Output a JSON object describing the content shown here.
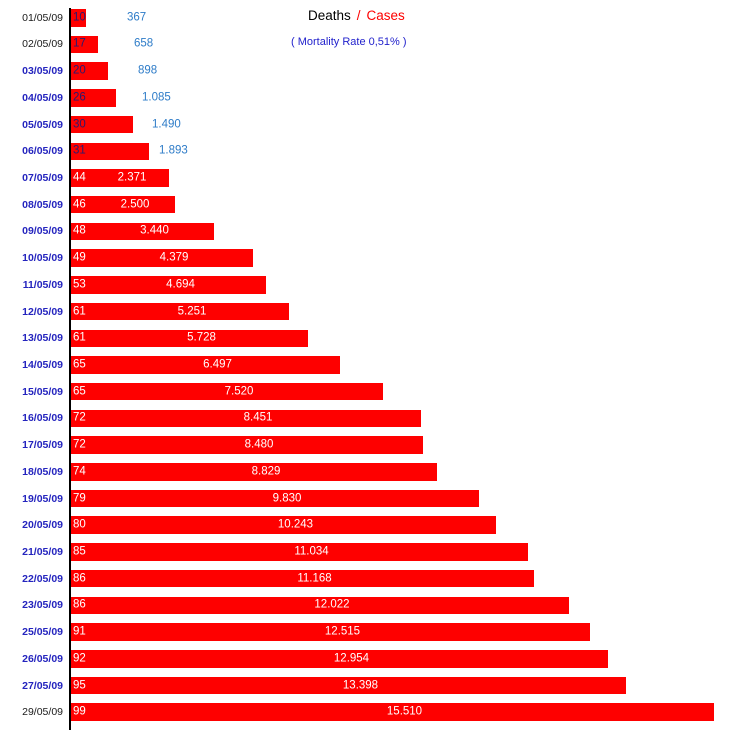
{
  "legend": {
    "deaths_label": "Deaths",
    "separator": "/",
    "cases_label": "Cases",
    "mortality_note": "( Mortality Rate 0,51% )"
  },
  "colors": {
    "bar": "#FE0000",
    "axis": "#000000",
    "date_accent": "#2424BE",
    "date_plain": "#1A1A1A",
    "deaths_text_dark": "#2A1A6E",
    "bar_text_white": "#FFFFFF",
    "cases_outside_blue": "#2E7CC8",
    "legend_cases_red": "#FE0000",
    "mortality_blue": "#2222CC"
  },
  "chart_data": {
    "type": "bar",
    "orientation": "horizontal",
    "title": "Deaths / Cases",
    "subtitle": "( Mortality Rate 0,51% )",
    "grid": false,
    "legend_position": "top-right",
    "xlim": [
      0,
      15510
    ],
    "categories": [
      "01/05/09",
      "02/05/09",
      "03/05/09",
      "04/05/09",
      "05/05/09",
      "06/05/09",
      "07/05/09",
      "08/05/09",
      "09/05/09",
      "10/05/09",
      "11/05/09",
      "12/05/09",
      "13/05/09",
      "14/05/09",
      "15/05/09",
      "16/05/09",
      "17/05/09",
      "18/05/09",
      "19/05/09",
      "20/05/09",
      "21/05/09",
      "22/05/09",
      "23/05/09",
      "25/05/09",
      "26/05/09",
      "27/05/09",
      "29/05/09"
    ],
    "series": [
      {
        "name": "Deaths",
        "values": [
          10,
          17,
          20,
          26,
          30,
          31,
          44,
          46,
          48,
          49,
          53,
          61,
          61,
          65,
          65,
          72,
          72,
          74,
          79,
          80,
          85,
          86,
          86,
          91,
          92,
          95,
          99
        ]
      },
      {
        "name": "Cases",
        "values": [
          367,
          658,
          898,
          1085,
          1490,
          1893,
          2371,
          2500,
          3440,
          4379,
          4694,
          5251,
          5728,
          6497,
          7520,
          8451,
          8480,
          8829,
          9830,
          10243,
          11034,
          11168,
          12022,
          12515,
          12954,
          13398,
          15510
        ]
      }
    ]
  },
  "rows": [
    {
      "date": "01/05/09",
      "deaths": "10",
      "cases": 367,
      "cases_display": "367",
      "date_variant": "plain",
      "value_placement": "outside"
    },
    {
      "date": "02/05/09",
      "deaths": "17",
      "cases": 658,
      "cases_display": "658",
      "date_variant": "plain",
      "value_placement": "outside"
    },
    {
      "date": "03/05/09",
      "deaths": "20",
      "cases": 898,
      "cases_display": "898",
      "date_variant": "accent",
      "value_placement": "outside"
    },
    {
      "date": "04/05/09",
      "deaths": "26",
      "cases": 1085,
      "cases_display": "1.085",
      "date_variant": "accent",
      "value_placement": "outside"
    },
    {
      "date": "05/05/09",
      "deaths": "30",
      "cases": 1490,
      "cases_display": "1.490",
      "date_variant": "accent",
      "value_placement": "outside"
    },
    {
      "date": "06/05/09",
      "deaths": "31",
      "cases": 1893,
      "cases_display": "1.893",
      "date_variant": "accent",
      "value_placement": "outside"
    },
    {
      "date": "07/05/09",
      "deaths": "44",
      "cases": 2371,
      "cases_display": "2.371",
      "date_variant": "accent",
      "value_placement": "inside"
    },
    {
      "date": "08/05/09",
      "deaths": "46",
      "cases": 2500,
      "cases_display": "2.500",
      "date_variant": "accent",
      "value_placement": "inside"
    },
    {
      "date": "09/05/09",
      "deaths": "48",
      "cases": 3440,
      "cases_display": "3.440",
      "date_variant": "accent",
      "value_placement": "inside"
    },
    {
      "date": "10/05/09",
      "deaths": "49",
      "cases": 4379,
      "cases_display": "4.379",
      "date_variant": "accent",
      "value_placement": "inside"
    },
    {
      "date": "11/05/09",
      "deaths": "53",
      "cases": 4694,
      "cases_display": "4.694",
      "date_variant": "accent",
      "value_placement": "inside"
    },
    {
      "date": "12/05/09",
      "deaths": "61",
      "cases": 5251,
      "cases_display": "5.251",
      "date_variant": "accent",
      "value_placement": "inside"
    },
    {
      "date": "13/05/09",
      "deaths": "61",
      "cases": 5728,
      "cases_display": "5.728",
      "date_variant": "accent",
      "value_placement": "inside"
    },
    {
      "date": "14/05/09",
      "deaths": "65",
      "cases": 6497,
      "cases_display": "6.497",
      "date_variant": "accent",
      "value_placement": "inside"
    },
    {
      "date": "15/05/09",
      "deaths": "65",
      "cases": 7520,
      "cases_display": "7.520",
      "date_variant": "accent",
      "value_placement": "inside"
    },
    {
      "date": "16/05/09",
      "deaths": "72",
      "cases": 8451,
      "cases_display": "8.451",
      "date_variant": "accent",
      "value_placement": "inside"
    },
    {
      "date": "17/05/09",
      "deaths": "72",
      "cases": 8480,
      "cases_display": "8.480",
      "date_variant": "accent",
      "value_placement": "inside"
    },
    {
      "date": "18/05/09",
      "deaths": "74",
      "cases": 8829,
      "cases_display": "8.829",
      "date_variant": "accent",
      "value_placement": "inside"
    },
    {
      "date": "19/05/09",
      "deaths": "79",
      "cases": 9830,
      "cases_display": "9.830",
      "date_variant": "accent",
      "value_placement": "inside"
    },
    {
      "date": "20/05/09",
      "deaths": "80",
      "cases": 10243,
      "cases_display": "10.243",
      "date_variant": "accent",
      "value_placement": "inside"
    },
    {
      "date": "21/05/09",
      "deaths": "85",
      "cases": 11034,
      "cases_display": "11.034",
      "date_variant": "accent",
      "value_placement": "inside"
    },
    {
      "date": "22/05/09",
      "deaths": "86",
      "cases": 11168,
      "cases_display": "11.168",
      "date_variant": "accent",
      "value_placement": "inside"
    },
    {
      "date": "23/05/09",
      "deaths": "86",
      "cases": 12022,
      "cases_display": "12.022",
      "date_variant": "accent",
      "value_placement": "inside"
    },
    {
      "date": "25/05/09",
      "deaths": "91",
      "cases": 12515,
      "cases_display": "12.515",
      "date_variant": "accent",
      "value_placement": "inside"
    },
    {
      "date": "26/05/09",
      "deaths": "92",
      "cases": 12954,
      "cases_display": "12.954",
      "date_variant": "accent",
      "value_placement": "inside"
    },
    {
      "date": "27/05/09",
      "deaths": "95",
      "cases": 13398,
      "cases_display": "13.398",
      "date_variant": "accent",
      "value_placement": "inside"
    },
    {
      "date": "29/05/09",
      "deaths": "99",
      "cases": 15510,
      "cases_display": "15.510",
      "date_variant": "plain",
      "value_placement": "inside"
    }
  ]
}
